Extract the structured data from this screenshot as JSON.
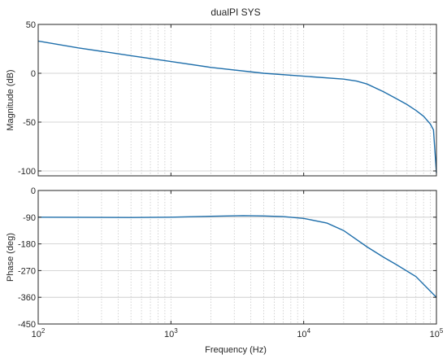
{
  "figure": {
    "title": "dualPI SYS",
    "xlabel": "Frequency  (Hz)",
    "colors": {
      "line": "#1f6fab",
      "axis": "#262626",
      "grid": "#c8c8c8"
    }
  },
  "chart_data": [
    {
      "type": "line",
      "panel": "magnitude",
      "title": "dualPI SYS",
      "xlabel": "",
      "ylabel": "Magnitude (dB)",
      "x_scale": "log",
      "xlim": [
        100,
        100000
      ],
      "ylim": [
        -105,
        50
      ],
      "yticks": [
        50,
        0,
        -50,
        -100
      ],
      "ytick_labels": [
        "50",
        "0",
        "-50",
        "-100"
      ],
      "grid": true,
      "series": [
        {
          "x": [
            100,
            200,
            500,
            1000,
            2000,
            5000,
            10000,
            20000,
            25000,
            30000,
            40000,
            50000,
            60000,
            70000,
            80000,
            90000,
            95000,
            100000
          ],
          "values": [
            33,
            26,
            18,
            12,
            6,
            0,
            -3,
            -6,
            -8,
            -11,
            -19,
            -26,
            -32,
            -38,
            -44,
            -52,
            -58,
            -102
          ]
        }
      ]
    },
    {
      "type": "line",
      "panel": "phase",
      "xlabel": "Frequency  (Hz)",
      "ylabel": "Phase (deg)",
      "x_scale": "log",
      "xlim": [
        100,
        100000
      ],
      "ylim": [
        -450,
        0
      ],
      "yticks": [
        0,
        -90,
        -180,
        -270,
        -360,
        -450
      ],
      "ytick_labels": [
        "0",
        "-90",
        "-180",
        "-270",
        "-360",
        "-450"
      ],
      "xticks": [
        100,
        1000,
        10000,
        100000
      ],
      "xtick_labels": [
        [
          "10",
          "2"
        ],
        [
          "10",
          "3"
        ],
        [
          "10",
          "4"
        ],
        [
          "10",
          "5"
        ]
      ],
      "grid": true,
      "series": [
        {
          "x": [
            100,
            500,
            1000,
            2000,
            3500,
            5000,
            7000,
            10000,
            15000,
            20000,
            30000,
            40000,
            50000,
            70000,
            100000
          ],
          "values": [
            -90,
            -91,
            -90,
            -87,
            -85,
            -86,
            -88,
            -94,
            -110,
            -135,
            -190,
            -225,
            -250,
            -290,
            -360
          ]
        }
      ]
    }
  ]
}
